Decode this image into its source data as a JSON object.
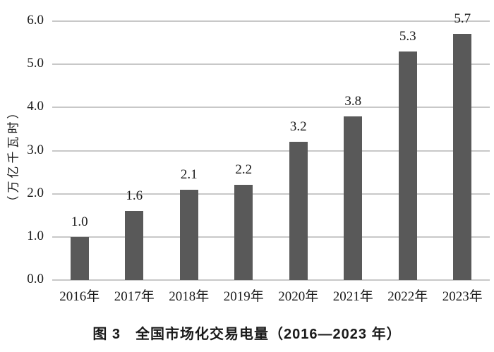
{
  "figure": {
    "caption": "图 3　全国市场化交易电量（2016—2023 年）"
  },
  "chart_data": {
    "type": "bar",
    "title": "",
    "categories": [
      "2016年",
      "2017年",
      "2018年",
      "2019年",
      "2020年",
      "2021年",
      "2022年",
      "2023年"
    ],
    "values": [
      1.0,
      1.6,
      2.1,
      2.2,
      3.2,
      3.8,
      5.3,
      5.7
    ],
    "data_labels": [
      "1.0",
      "1.6",
      "2.1",
      "2.2",
      "3.2",
      "3.8",
      "5.3",
      "5.7"
    ],
    "xlabel": "",
    "ylabel": "（万亿千瓦时）",
    "ylim": [
      0,
      6
    ],
    "yticks": [
      "0.0",
      "1.0",
      "2.0",
      "3.0",
      "4.0",
      "5.0",
      "6.0"
    ],
    "grid": true,
    "legend": "none",
    "colors": {
      "bar": "#595959",
      "gridline": "#c8c8c8",
      "text": "#1a1a1a",
      "background": "#ffffff"
    }
  }
}
